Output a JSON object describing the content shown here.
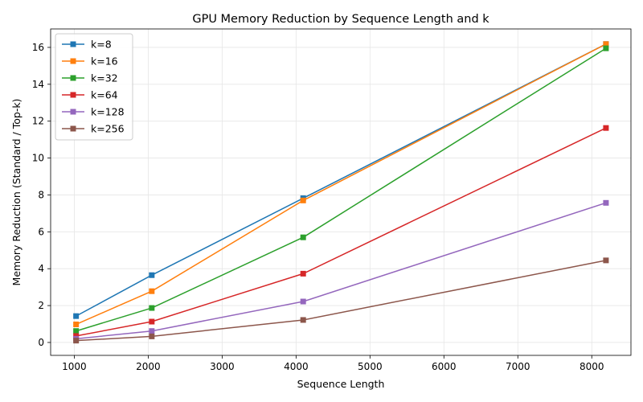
{
  "chart_data": {
    "type": "line",
    "title": "GPU Memory Reduction by Sequence Length and k",
    "xlabel": "Sequence Length",
    "ylabel": "Memory Reduction (Standard / Top-k)",
    "xlim": [
      680,
      8530
    ],
    "ylim": [
      -0.7,
      17.0
    ],
    "xticks": [
      1000,
      2000,
      3000,
      4000,
      5000,
      6000,
      7000,
      8000
    ],
    "yticks": [
      0,
      2,
      4,
      6,
      8,
      10,
      12,
      14,
      16
    ],
    "grid": true,
    "legend_position": "upper-left",
    "x": [
      1024,
      2048,
      4096,
      8192
    ],
    "series": [
      {
        "name": "k=8",
        "color": "#1f77b4",
        "values": [
          1.43,
          3.65,
          7.82,
          16.18
        ]
      },
      {
        "name": "k=16",
        "color": "#ff7f0e",
        "values": [
          0.98,
          2.78,
          7.7,
          16.18
        ]
      },
      {
        "name": "k=32",
        "color": "#2ca02c",
        "values": [
          0.62,
          1.87,
          5.7,
          15.95
        ]
      },
      {
        "name": "k=64",
        "color": "#d62728",
        "values": [
          0.35,
          1.13,
          3.73,
          11.63
        ]
      },
      {
        "name": "k=128",
        "color": "#9467bd",
        "values": [
          0.2,
          0.62,
          2.22,
          7.57
        ]
      },
      {
        "name": "k=256",
        "color": "#8c564b",
        "values": [
          0.1,
          0.33,
          1.22,
          4.45
        ]
      }
    ]
  }
}
